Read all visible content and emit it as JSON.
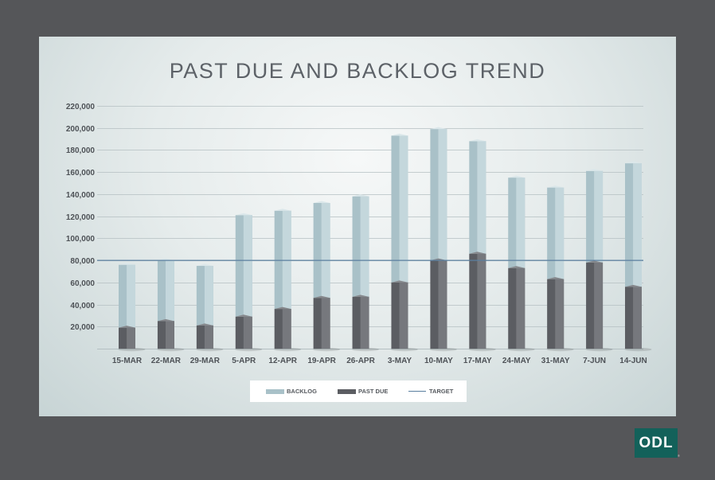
{
  "colors": {
    "backlog": "#a9c1c8",
    "backlog_light": "#c4d7dc",
    "past_due": "#5b5d62",
    "past_due_light": "#76787d",
    "target": "#5a7f9f",
    "grid": "#b4bfc2",
    "tick_label": "#4d5156",
    "page_background": "#555659",
    "logo": "#13615a"
  },
  "chart_data": {
    "type": "bar",
    "title": "PAST DUE AND BACKLOG TREND",
    "stacked": true,
    "categories": [
      "15-MAR",
      "22-MAR",
      "29-MAR",
      "5-APR",
      "12-APR",
      "19-APR",
      "26-APR",
      "3-MAY",
      "10-MAY",
      "17-MAY",
      "24-MAY",
      "31-MAY",
      "7-JUN",
      "14-JUN"
    ],
    "series": [
      {
        "name": "PAST DUE",
        "values": [
          19000,
          25000,
          21000,
          29000,
          36000,
          46000,
          47000,
          60000,
          80000,
          86000,
          73000,
          63000,
          78000,
          56000
        ]
      },
      {
        "name": "BACKLOG",
        "values": [
          57000,
          55000,
          54000,
          92000,
          89000,
          86000,
          91000,
          133000,
          119000,
          102000,
          82000,
          83000,
          83000,
          112000
        ]
      }
    ],
    "target": {
      "name": "TARGET",
      "value": 80000
    },
    "y_ticks": [
      "20,000",
      "40,000",
      "60,000",
      "80,000",
      "100,000",
      "120,000",
      "140,000",
      "160,000",
      "180,000",
      "200,000",
      "220,000"
    ],
    "ylim": [
      0,
      220000
    ],
    "grid": true,
    "legend_position": "bottom"
  },
  "legend": {
    "backlog_label": "BACKLOG",
    "past_due_label": "PAST DUE",
    "target_label": "TARGET"
  },
  "logo": {
    "text": "ODL",
    "mark": "®"
  }
}
